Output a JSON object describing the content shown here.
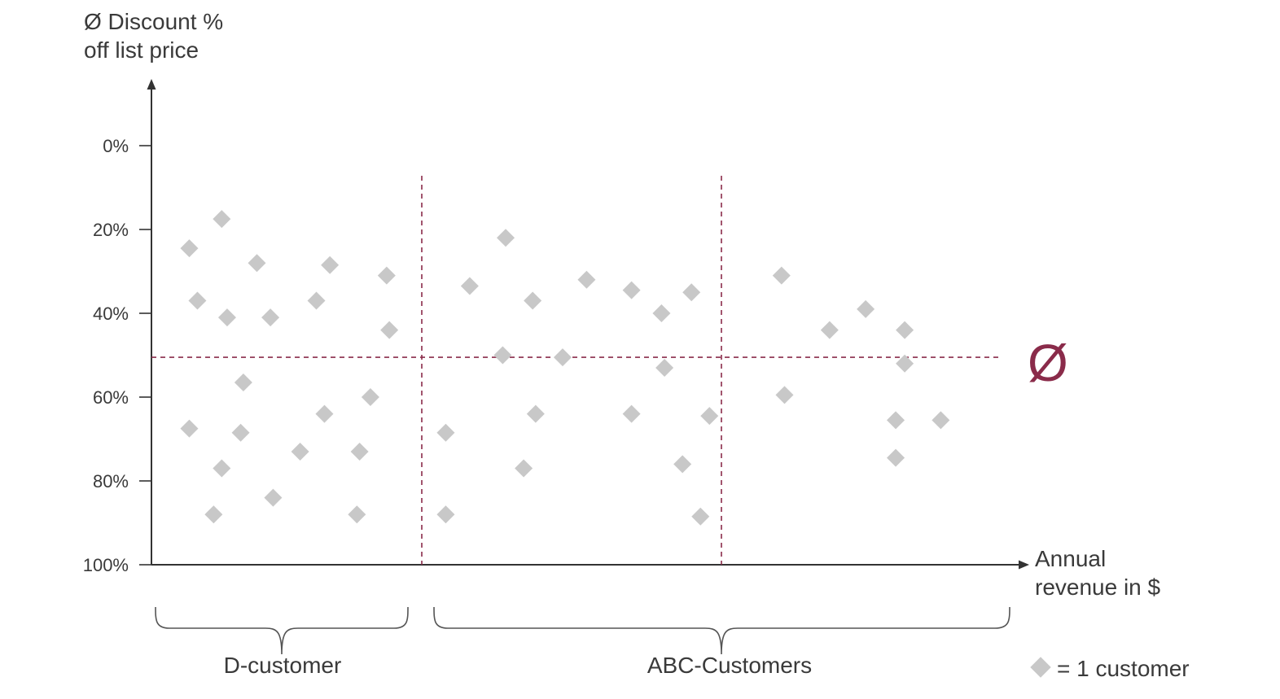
{
  "chart_data": {
    "type": "scatter",
    "ylabel_lines": [
      "Ø Discount %",
      "off list price"
    ],
    "xlabel_lines": [
      "Annual",
      "revenue in $"
    ],
    "yticks": [
      {
        "value": 0,
        "label": "0%"
      },
      {
        "value": 20,
        "label": "20%"
      },
      {
        "value": 40,
        "label": "40%"
      },
      {
        "value": 60,
        "label": "60%"
      },
      {
        "value": 80,
        "label": "80%"
      },
      {
        "value": 100,
        "label": "100%"
      }
    ],
    "y_axis_direction": "inverted (0% at top, 100% at bottom)",
    "ylim": [
      0,
      100
    ],
    "x_axis_numeric": false,
    "average_line": {
      "y": 50.5,
      "symbol": "Ø",
      "color": "#8a2b4a"
    },
    "segment_dividers": [
      1,
      2
    ],
    "segments": [
      {
        "label": "D-customer",
        "from": 0,
        "to": 1
      },
      {
        "label": "ABC-Customers",
        "from": 1,
        "to": 3
      }
    ],
    "legend": {
      "marker": "diamond",
      "text": "= 1 customer"
    },
    "marker_color": "#c8c8c8",
    "points": [
      {
        "x": 0.14,
        "y": 24.5
      },
      {
        "x": 0.26,
        "y": 17.5
      },
      {
        "x": 0.17,
        "y": 37
      },
      {
        "x": 0.28,
        "y": 41
      },
      {
        "x": 0.39,
        "y": 28
      },
      {
        "x": 0.44,
        "y": 41
      },
      {
        "x": 0.61,
        "y": 37
      },
      {
        "x": 0.66,
        "y": 28.5
      },
      {
        "x": 0.87,
        "y": 31
      },
      {
        "x": 0.88,
        "y": 44
      },
      {
        "x": 0.34,
        "y": 56.5
      },
      {
        "x": 0.14,
        "y": 67.5
      },
      {
        "x": 0.33,
        "y": 68.5
      },
      {
        "x": 0.26,
        "y": 77
      },
      {
        "x": 0.23,
        "y": 88
      },
      {
        "x": 0.45,
        "y": 84
      },
      {
        "x": 0.55,
        "y": 73
      },
      {
        "x": 0.64,
        "y": 64
      },
      {
        "x": 0.81,
        "y": 60
      },
      {
        "x": 0.77,
        "y": 73
      },
      {
        "x": 0.76,
        "y": 88
      },
      {
        "x": 1.16,
        "y": 33.5
      },
      {
        "x": 1.28,
        "y": 22
      },
      {
        "x": 1.37,
        "y": 37
      },
      {
        "x": 1.55,
        "y": 32
      },
      {
        "x": 1.7,
        "y": 34.5
      },
      {
        "x": 1.8,
        "y": 40
      },
      {
        "x": 1.9,
        "y": 35
      },
      {
        "x": 1.27,
        "y": 50
      },
      {
        "x": 1.47,
        "y": 50.5
      },
      {
        "x": 1.81,
        "y": 53
      },
      {
        "x": 1.38,
        "y": 64
      },
      {
        "x": 1.7,
        "y": 64
      },
      {
        "x": 1.96,
        "y": 64.5
      },
      {
        "x": 1.08,
        "y": 68.5
      },
      {
        "x": 1.34,
        "y": 77
      },
      {
        "x": 1.87,
        "y": 76
      },
      {
        "x": 1.08,
        "y": 88
      },
      {
        "x": 1.93,
        "y": 88.5
      },
      {
        "x": 2.2,
        "y": 31
      },
      {
        "x": 2.21,
        "y": 59.5
      },
      {
        "x": 2.36,
        "y": 44
      },
      {
        "x": 2.48,
        "y": 39
      },
      {
        "x": 2.61,
        "y": 44
      },
      {
        "x": 2.61,
        "y": 52
      },
      {
        "x": 2.58,
        "y": 65.5
      },
      {
        "x": 2.73,
        "y": 65.5
      },
      {
        "x": 2.58,
        "y": 74.5
      }
    ]
  }
}
